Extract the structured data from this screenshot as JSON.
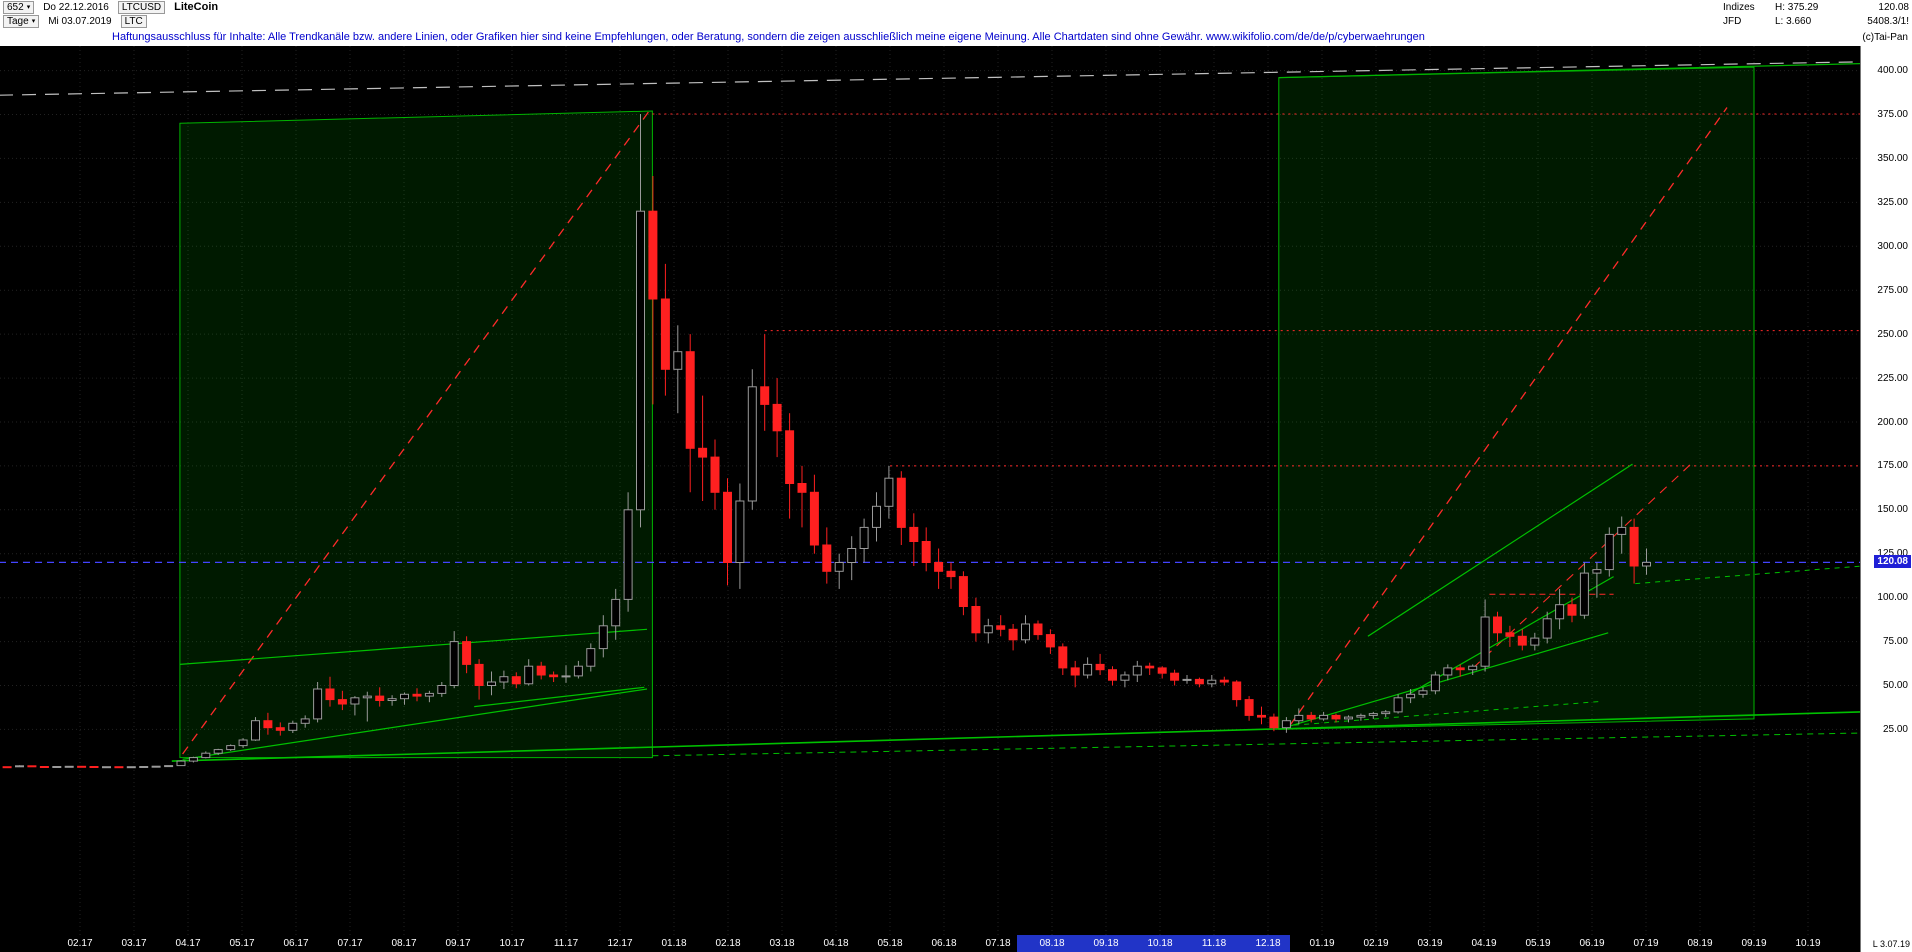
{
  "header": {
    "bars_count": "652",
    "caret": "▾",
    "start_date": "Do 22.12.2016",
    "symbol": "LTCUSD",
    "name": "LiteCoin",
    "period": "Tage",
    "end_date": "Mi 03.07.2019",
    "symbol_short": "LTC",
    "right": {
      "indizes_label": "Indizes",
      "high_label": "H: 375.29",
      "last_price": "120.08",
      "jfd_label": "JFD",
      "low_label": "L: 3.660",
      "volume": "5408.3/1!"
    },
    "disclaimer": "Haftungsausschluss für Inhalte: Alle Trendkanäle bzw. andere Linien, oder Grafiken hier sind keine Empfehlungen, oder Beratung, sondern die zeigen ausschließlich meine eigene Meinung. Alle Chartdaten sind ohne Gewähr.  www.wikifolio.com/de/de/p/cyberwaehrungen",
    "copyright": "(c)Tai-Pan"
  },
  "price_axis": {
    "ticks": [
      400,
      375,
      350,
      325,
      300,
      275,
      250,
      225,
      200,
      175,
      150,
      125,
      100,
      75,
      50,
      25
    ],
    "badge": "120.08",
    "badge_color": "#1f1fd6"
  },
  "time_axis": {
    "labels": [
      "02.17",
      "03.17",
      "04.17",
      "05.17",
      "06.17",
      "07.17",
      "08.17",
      "09.17",
      "10.17",
      "11.17",
      "12.17",
      "01.18",
      "02.18",
      "03.18",
      "04.18",
      "05.18",
      "06.18",
      "07.18",
      "08.18",
      "09.18",
      "10.18",
      "11.18",
      "12.18",
      "01.19",
      "02.19",
      "03.19",
      "04.19",
      "05.19",
      "06.19",
      "07.19",
      "08.19",
      "09.19",
      "10.19"
    ],
    "last_label": "L 3.07.19",
    "highlight": {
      "t1": 17.35,
      "t2": 22.4,
      "color": "#2134c7"
    }
  },
  "chart_data": {
    "type": "candlestick",
    "title": "LiteCoin LTCUSD daily chart",
    "last_price": 120.08,
    "range_high": 375.29,
    "range_low": 3.66,
    "x_unit": "months since 2017-02",
    "y_view": [
      -92,
      414
    ],
    "grid": {
      "h_step": 25,
      "v_step_months": 1,
      "color": "#222222"
    },
    "colors": {
      "up_stroke": "#9a9a9a",
      "up_fill": "#000000",
      "down": "#ff2020",
      "box_fill": "rgba(0,255,0,0.10)",
      "box_stroke": "#00b400"
    },
    "candles": {
      "sampling": "weekly",
      "start_t": -1.35,
      "step_t": 0.23,
      "ohlc": [
        [
          3.8,
          3.9,
          3.66,
          3.75
        ],
        [
          3.75,
          4.6,
          3.6,
          4.3
        ],
        [
          4.3,
          4.4,
          3.6,
          3.9
        ],
        [
          3.9,
          4.0,
          3.6,
          3.8
        ],
        [
          3.8,
          4.0,
          3.7,
          3.9
        ],
        [
          3.9,
          4.1,
          3.8,
          4.0
        ],
        [
          4.0,
          4.1,
          3.8,
          3.9
        ],
        [
          3.9,
          4.0,
          3.7,
          3.8
        ],
        [
          3.8,
          3.9,
          3.7,
          3.8
        ],
        [
          3.8,
          3.9,
          3.6,
          3.7
        ],
        [
          3.7,
          3.9,
          3.6,
          3.8
        ],
        [
          3.8,
          4.0,
          3.5,
          3.9
        ],
        [
          3.9,
          4.2,
          3.7,
          4.1
        ],
        [
          4.1,
          4.5,
          3.9,
          4.4
        ],
        [
          4.4,
          7.5,
          4.3,
          7.0
        ],
        [
          7.0,
          9.5,
          6.2,
          9.0
        ],
        [
          9.0,
          12.5,
          8.5,
          11.5
        ],
        [
          11.5,
          14.0,
          10.5,
          13.5
        ],
        [
          13.5,
          16.5,
          12.8,
          15.8
        ],
        [
          15.8,
          20.0,
          14.5,
          19.0
        ],
        [
          19.0,
          32.0,
          18.5,
          30.0
        ],
        [
          30.0,
          34.5,
          22.0,
          26.0
        ],
        [
          26.0,
          29.0,
          21.5,
          24.5
        ],
        [
          24.5,
          30.0,
          23.0,
          28.5
        ],
        [
          28.5,
          33.0,
          26.0,
          31.0
        ],
        [
          31.0,
          52.0,
          29.0,
          48.0
        ],
        [
          48.0,
          55.0,
          38.0,
          42.0
        ],
        [
          42.0,
          47.0,
          36.0,
          39.5
        ],
        [
          39.5,
          44.0,
          33.0,
          43.0
        ],
        [
          43.0,
          46.5,
          29.5,
          44.0
        ],
        [
          44.0,
          49.0,
          38.0,
          41.5
        ],
        [
          41.5,
          44.5,
          38.5,
          42.5
        ],
        [
          42.5,
          46.0,
          39.0,
          45.0
        ],
        [
          45.0,
          48.5,
          41.0,
          44.0
        ],
        [
          44.0,
          47.0,
          40.5,
          45.5
        ],
        [
          45.5,
          52.0,
          43.5,
          50.0
        ],
        [
          50.0,
          81.0,
          48.5,
          75.0
        ],
        [
          75.0,
          78.0,
          57.0,
          62.0
        ],
        [
          62.0,
          65.0,
          42.0,
          50.0
        ],
        [
          50.0,
          58.0,
          44.5,
          52.0
        ],
        [
          52.0,
          58.5,
          48.0,
          55.0
        ],
        [
          55.0,
          57.5,
          48.5,
          51.0
        ],
        [
          51.0,
          65.0,
          50.0,
          61.0
        ],
        [
          61.0,
          63.5,
          53.5,
          56.0
        ],
        [
          56.0,
          58.0,
          52.0,
          55.0
        ],
        [
          55.0,
          61.5,
          51.5,
          55.5
        ],
        [
          55.5,
          64.0,
          54.0,
          61.0
        ],
        [
          61.0,
          74.0,
          58.0,
          71.0
        ],
        [
          71.0,
          90.0,
          66.0,
          84.0
        ],
        [
          84.0,
          105.0,
          76.0,
          99.0
        ],
        [
          99.0,
          160.0,
          92.0,
          150.0
        ],
        [
          150.0,
          375.29,
          140.0,
          320.0
        ],
        [
          320.0,
          340.0,
          210.0,
          270.0
        ],
        [
          270.0,
          290.0,
          215.0,
          230.0
        ],
        [
          230.0,
          255.0,
          205.0,
          240.0
        ],
        [
          240.0,
          250.0,
          160.0,
          185.0
        ],
        [
          185.0,
          215.0,
          155.0,
          180.0
        ],
        [
          180.0,
          190.0,
          150.0,
          160.0
        ],
        [
          160.0,
          168.0,
          107.0,
          120.0
        ],
        [
          120.0,
          165.0,
          105.0,
          155.0
        ],
        [
          155.0,
          230.0,
          150.0,
          220.0
        ],
        [
          220.0,
          250.0,
          195.0,
          210.0
        ],
        [
          210.0,
          225.0,
          180.0,
          195.0
        ],
        [
          195.0,
          205.0,
          145.0,
          165.0
        ],
        [
          165.0,
          175.0,
          140.0,
          160.0
        ],
        [
          160.0,
          170.0,
          125.0,
          130.0
        ],
        [
          130.0,
          140.0,
          108.0,
          115.0
        ],
        [
          115.0,
          125.0,
          105.0,
          120.0
        ],
        [
          120.0,
          135.0,
          110.0,
          128.0
        ],
        [
          128.0,
          145.0,
          120.0,
          140.0
        ],
        [
          140.0,
          160.0,
          132.0,
          152.0
        ],
        [
          152.0,
          175.0,
          145.0,
          168.0
        ],
        [
          168.0,
          172.0,
          130.0,
          140.0
        ],
        [
          140.0,
          148.0,
          118.0,
          132.0
        ],
        [
          132.0,
          140.0,
          115.0,
          120.0
        ],
        [
          120.0,
          128.0,
          105.0,
          115.0
        ],
        [
          115.0,
          120.0,
          105.0,
          112.0
        ],
        [
          112.0,
          115.0,
          90.0,
          95.0
        ],
        [
          95.0,
          100.0,
          75.0,
          80.0
        ],
        [
          80.0,
          88.0,
          74.0,
          84.0
        ],
        [
          84.0,
          90.0,
          78.0,
          82.0
        ],
        [
          82.0,
          85.0,
          70.0,
          76.0
        ],
        [
          76.0,
          90.0,
          74.0,
          85.0
        ],
        [
          85.0,
          87.0,
          76.0,
          79.0
        ],
        [
          79.0,
          82.0,
          68.0,
          72.0
        ],
        [
          72.0,
          74.0,
          56.0,
          60.0
        ],
        [
          60.0,
          64.0,
          49.0,
          56.0
        ],
        [
          56.0,
          66.0,
          54.0,
          62.0
        ],
        [
          62.0,
          68.0,
          56.0,
          59.0
        ],
        [
          59.0,
          61.0,
          50.0,
          53.0
        ],
        [
          53.0,
          58.0,
          49.0,
          56.0
        ],
        [
          56.0,
          64.0,
          52.0,
          61.0
        ],
        [
          61.0,
          63.0,
          56.0,
          60.0
        ],
        [
          60.0,
          61.0,
          54.0,
          57.0
        ],
        [
          57.0,
          59.0,
          50.0,
          53.0
        ],
        [
          53.0,
          56.0,
          51.0,
          53.5
        ],
        [
          53.5,
          54.5,
          49.0,
          51.0
        ],
        [
          51.0,
          56.0,
          49.0,
          53.0
        ],
        [
          53.0,
          55.0,
          50.0,
          52.0
        ],
        [
          52.0,
          53.0,
          38.0,
          42.0
        ],
        [
          42.0,
          44.0,
          30.0,
          33.0
        ],
        [
          33.0,
          38.0,
          28.0,
          32.0
        ],
        [
          32.0,
          34.0,
          24.0,
          26.0
        ],
        [
          26.0,
          32.0,
          23.1,
          30.0
        ],
        [
          30.0,
          37.0,
          28.0,
          33.0
        ],
        [
          33.0,
          35.0,
          29.0,
          31.0
        ],
        [
          31.0,
          35.0,
          30.0,
          33.0
        ],
        [
          33.0,
          34.0,
          29.0,
          31.0
        ],
        [
          31.0,
          33.0,
          29.0,
          32.0
        ],
        [
          32.0,
          34.0,
          30.0,
          33.0
        ],
        [
          33.0,
          35.0,
          31.0,
          34.0
        ],
        [
          34.0,
          36.0,
          32.0,
          35.0
        ],
        [
          35.0,
          45.0,
          34.0,
          43.0
        ],
        [
          43.0,
          48.0,
          40.0,
          45.0
        ],
        [
          45.0,
          49.0,
          43.0,
          47.0
        ],
        [
          47.0,
          58.0,
          45.0,
          56.0
        ],
        [
          56.0,
          62.0,
          53.0,
          60.0
        ],
        [
          60.0,
          62.0,
          55.0,
          59.0
        ],
        [
          59.0,
          62.0,
          56.0,
          61.0
        ],
        [
          61.0,
          99.0,
          58.0,
          89.0
        ],
        [
          89.0,
          92.0,
          75.0,
          80.0
        ],
        [
          80.0,
          84.0,
          72.0,
          78.0
        ],
        [
          78.0,
          82.0,
          70.0,
          73.0
        ],
        [
          73.0,
          80.0,
          70.0,
          77.0
        ],
        [
          77.0,
          92.0,
          74.0,
          88.0
        ],
        [
          88.0,
          105.0,
          82.0,
          96.0
        ],
        [
          96.0,
          100.0,
          86.0,
          90.0
        ],
        [
          90.0,
          120.0,
          88.0,
          114.0
        ],
        [
          114.0,
          120.0,
          100.0,
          116.0
        ],
        [
          116.0,
          140.0,
          112.0,
          136.0
        ],
        [
          136.0,
          146.2,
          125.0,
          140.0
        ],
        [
          140.0,
          145.0,
          108.0,
          118.0
        ],
        [
          118.0,
          128.0,
          113.0,
          120.08
        ]
      ]
    },
    "overlays": {
      "boxes": [
        {
          "name": "trend-box-2017",
          "pts": [
            [
              1.85,
              370
            ],
            [
              10.6,
              377
            ],
            [
              10.6,
              9
            ],
            [
              1.85,
              9
            ]
          ]
        },
        {
          "name": "trend-box-2019",
          "pts": [
            [
              22.2,
              396
            ],
            [
              31.0,
              402
            ],
            [
              31.0,
              31
            ],
            [
              22.2,
              25
            ]
          ]
        }
      ],
      "lines": [
        {
          "name": "red-trend-2017",
          "t1": 1.9,
          "p1": 11,
          "t2": 10.54,
          "p2": 377,
          "c": "#ff2a2a",
          "d": "9,7",
          "w": 1.3
        },
        {
          "name": "red-trend-2019",
          "t1": 22.4,
          "p1": 27,
          "t2": 30.5,
          "p2": 379,
          "c": "#ff2a2a",
          "d": "9,7",
          "w": 1.3
        },
        {
          "name": "red-trend-2019-short",
          "t1": 25.8,
          "p1": 60,
          "t2": 29.9,
          "p2": 178,
          "c": "#ff2a2a",
          "d": "9,7",
          "w": 1.1
        },
        {
          "name": "resistance-375",
          "t1": 10.6,
          "p1": 375.29,
          "t2": 33,
          "p2": 375.29,
          "c": "#ff2a2a",
          "d": "2,4",
          "w": 1
        },
        {
          "name": "resistance-252",
          "t1": 12.68,
          "p1": 252,
          "t2": 33,
          "p2": 252,
          "c": "#ff2a2a",
          "d": "2,4",
          "w": 1
        },
        {
          "name": "resistance-175",
          "t1": 15.0,
          "p1": 175,
          "t2": 33,
          "p2": 175,
          "c": "#ff2a2a",
          "d": "2,4",
          "w": 1
        },
        {
          "name": "red-short-100",
          "t1": 26.1,
          "p1": 102,
          "t2": 28.4,
          "p2": 102,
          "c": "#ff2a2a",
          "d": "6,4",
          "w": 1
        },
        {
          "name": "last-price-line",
          "t1": -1.5,
          "p1": 120.08,
          "t2": 33,
          "p2": 120.08,
          "c": "#4444ff",
          "d": "7,5",
          "w": 1.3
        },
        {
          "name": "long-term-support",
          "t1": 1.7,
          "p1": 7,
          "t2": 33,
          "p2": 35,
          "c": "#00c000",
          "d": null,
          "w": 1.6
        },
        {
          "name": "support-dashed-bottom",
          "t1": 10.6,
          "p1": 10,
          "t2": 33,
          "p2": 23,
          "c": "#00c000",
          "d": "6,5",
          "w": 1
        },
        {
          "name": "channel-2017-lower",
          "t1": 1.9,
          "p1": 8,
          "t2": 10.5,
          "p2": 48,
          "c": "#00c000",
          "d": null,
          "w": 1.2
        },
        {
          "name": "channel-2017-upper",
          "t1": 1.85,
          "p1": 62,
          "t2": 10.5,
          "p2": 82,
          "c": "#00c000",
          "d": null,
          "w": 1.2
        },
        {
          "name": "channel-2017-inner",
          "t1": 7.3,
          "p1": 38,
          "t2": 10.45,
          "p2": 49,
          "c": "#00c000",
          "d": null,
          "w": 1.2
        },
        {
          "name": "trend-2019-support",
          "t1": 22.3,
          "p1": 26,
          "t2": 28.3,
          "p2": 80,
          "c": "#00c000",
          "d": null,
          "w": 1.2
        },
        {
          "name": "trend-2019-steep",
          "t1": 23.85,
          "p1": 78,
          "t2": 28.75,
          "p2": 176,
          "c": "#00c000",
          "d": null,
          "w": 1.2
        },
        {
          "name": "trend-2019-mid",
          "t1": 24.6,
          "p1": 45,
          "t2": 28.4,
          "p2": 112,
          "c": "#00c000",
          "d": null,
          "w": 1.2
        },
        {
          "name": "trend-2019-dashed",
          "t1": 22.3,
          "p1": 27,
          "t2": 28.2,
          "p2": 41,
          "c": "#00c000",
          "d": "5,5",
          "w": 1
        },
        {
          "name": "gray-upper-trend",
          "t1": -1.5,
          "p1": 386,
          "t2": 33,
          "p2": 405,
          "c": "#c0c0c0",
          "d": "14,9",
          "w": 1.2
        },
        {
          "name": "green-top-line",
          "t1": 22.2,
          "p1": 396,
          "t2": 33,
          "p2": 404,
          "c": "#00b400",
          "d": null,
          "w": 1.2
        },
        {
          "name": "green-dashed-right",
          "t1": 28.8,
          "p1": 108,
          "t2": 33,
          "p2": 118,
          "c": "#00c000",
          "d": "5,5",
          "w": 1
        }
      ]
    }
  }
}
